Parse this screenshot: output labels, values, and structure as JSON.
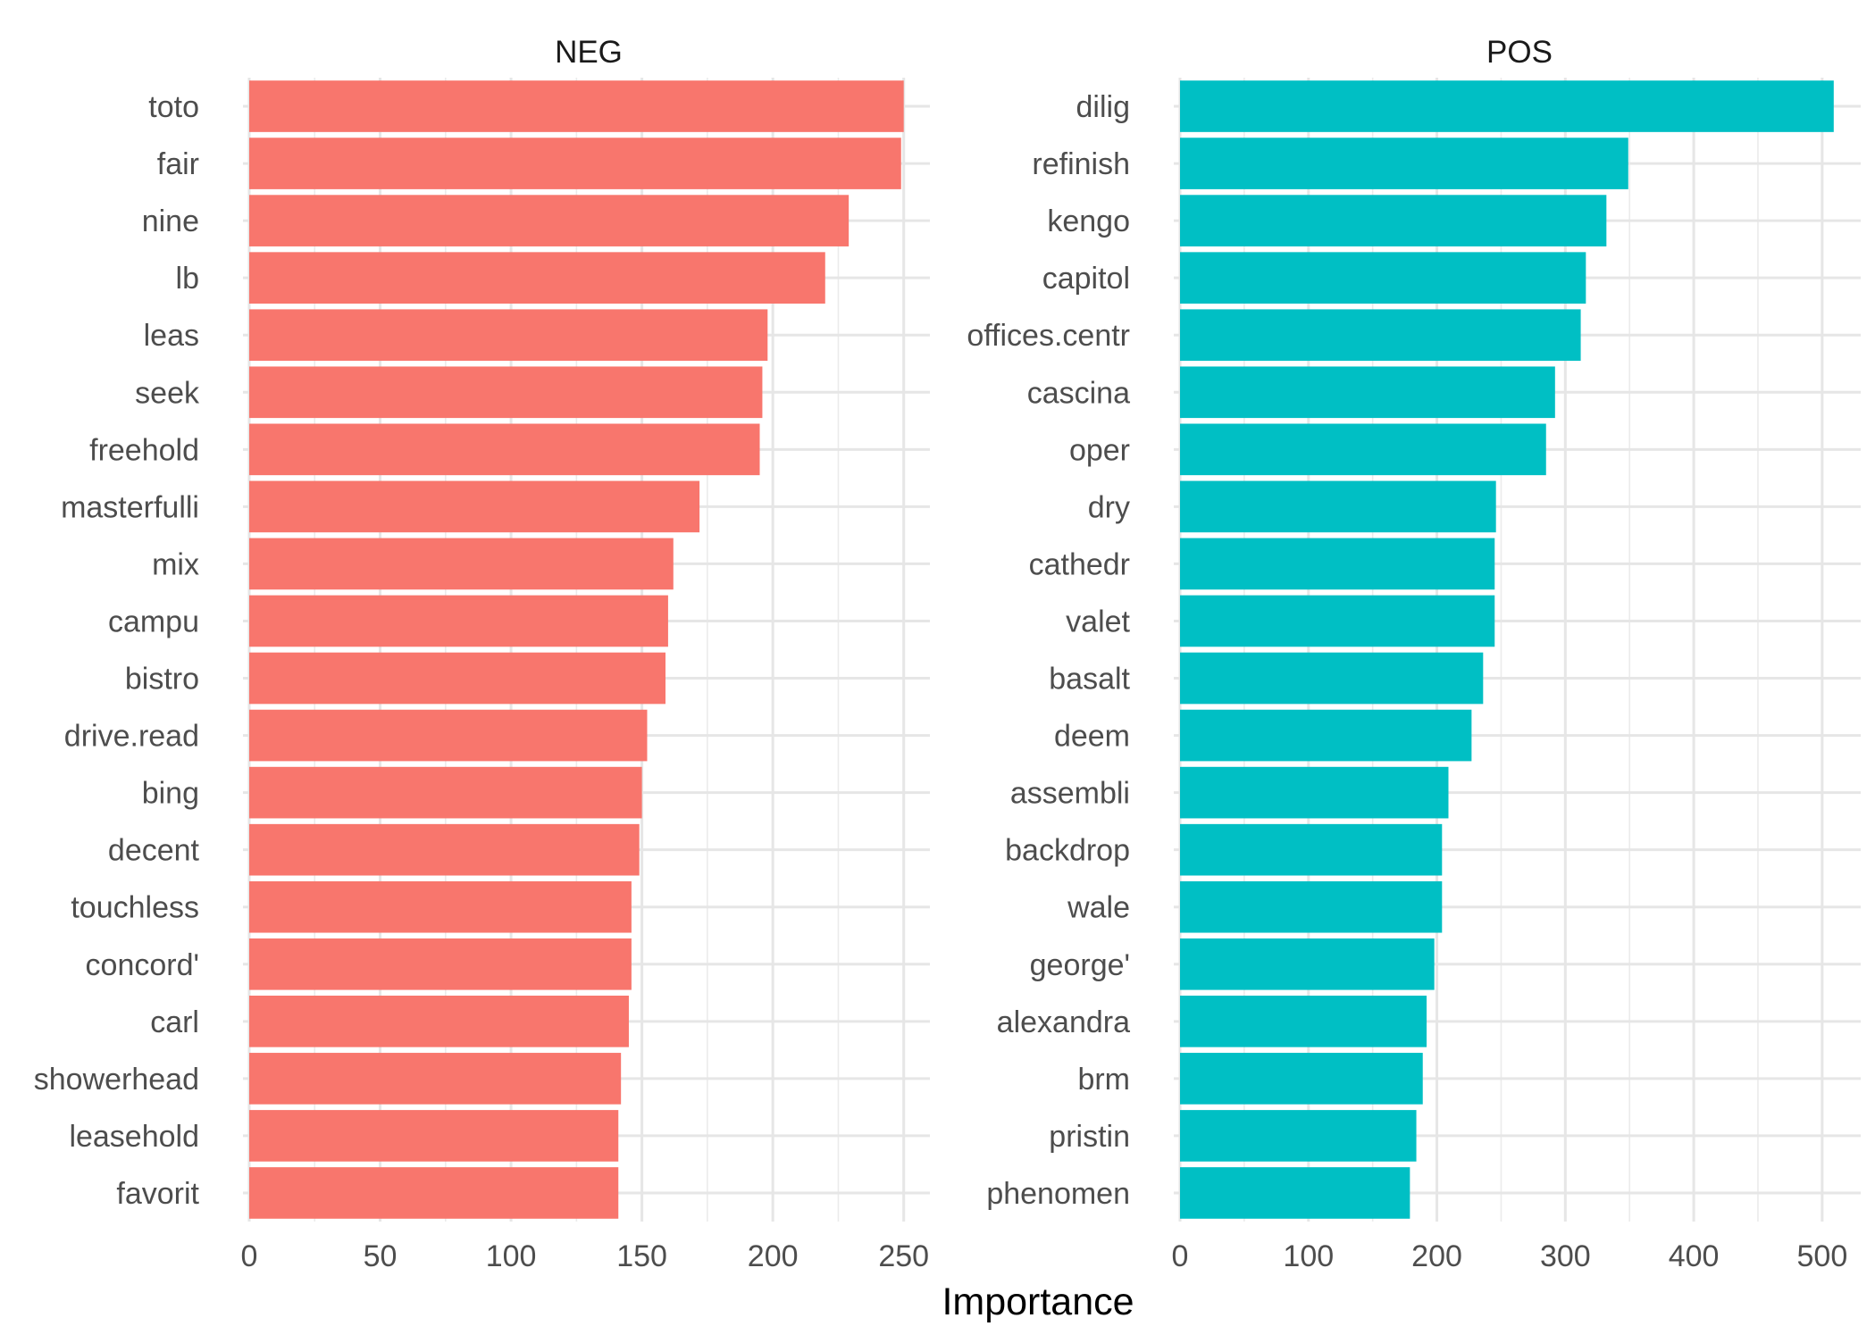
{
  "chart_data": [
    {
      "type": "bar",
      "orientation": "horizontal",
      "title": "NEG",
      "color": "#F8766D",
      "categories": [
        "toto",
        "fair",
        "nine",
        "lb",
        "leas",
        "seek",
        "freehold",
        "masterfulli",
        "mix",
        "campu",
        "bistro",
        "drive.read",
        "bing",
        "decent",
        "touchless",
        "concord'",
        "carl",
        "showerhead",
        "leasehold",
        "favorit"
      ],
      "values": [
        250,
        249,
        229,
        220,
        198,
        196,
        195,
        172,
        162,
        160,
        159,
        152,
        150,
        149,
        146,
        146,
        145,
        142,
        141,
        141
      ],
      "xlim": [
        0,
        260
      ],
      "xticks": [
        "0",
        "50",
        "100",
        "150",
        "200",
        "250"
      ],
      "grid": true
    },
    {
      "type": "bar",
      "orientation": "horizontal",
      "title": "POS",
      "color": "#00BFC4",
      "categories": [
        "dilig",
        "refinish",
        "kengo",
        "capitol",
        "offices.centr",
        "cascina",
        "oper",
        "dry",
        "cathedr",
        "valet",
        "basalt",
        "deem",
        "assembli",
        "backdrop",
        "wale",
        "george'",
        "alexandra",
        "brm",
        "pristin",
        "phenomen"
      ],
      "values": [
        509,
        349,
        332,
        316,
        312,
        292,
        285,
        246,
        245,
        245,
        236,
        227,
        209,
        204,
        204,
        198,
        192,
        189,
        184,
        179
      ],
      "xlim": [
        0,
        530
      ],
      "xticks": [
        "0",
        "100",
        "200",
        "300",
        "400",
        "500"
      ],
      "grid": true
    }
  ],
  "xlabel": "Importance"
}
